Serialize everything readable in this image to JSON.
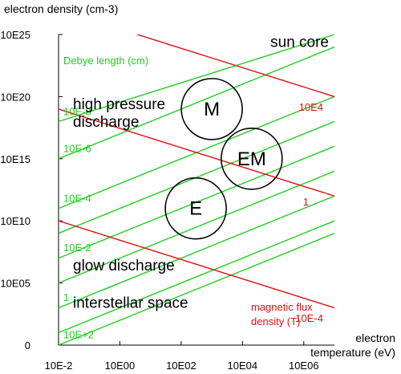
{
  "chart_data": {
    "type": "line",
    "xlabel": "electron\ntemperature (eV)",
    "ylabel": "electron density (cm-3)",
    "x_scale": "log",
    "y_scale": "log",
    "xlim": [
      0.01,
      10000000
    ],
    "ylim": [
      1,
      1e+25
    ],
    "x_ticks": [
      {
        "value": 0.01,
        "label": "10E-2"
      },
      {
        "value": 1,
        "label": "10E00"
      },
      {
        "value": 100,
        "label": "10E02"
      },
      {
        "value": 10000,
        "label": "10E04"
      },
      {
        "value": 1000000,
        "label": "10E06"
      }
    ],
    "y_ticks": [
      {
        "value": 1,
        "label": "0"
      },
      {
        "value": 100000,
        "label": "10E05"
      },
      {
        "value": 10000000000,
        "label": "10E10"
      },
      {
        "value": 1000000000000000.0,
        "label": "10E15"
      },
      {
        "value": 1e+20,
        "label": "10E20"
      },
      {
        "value": 1e+25,
        "label": "10E25"
      }
    ],
    "grid": false,
    "debye_length": {
      "title": "Debye length (cm)",
      "color": "#22cc22",
      "lines": [
        {
          "label": "10E+2",
          "y_at_xmin": 1,
          "y_at_xmax": 1000000000
        },
        {
          "label": "",
          "y_at_xmin": 10,
          "y_at_xmax": 10000000000
        },
        {
          "label": "1",
          "y_at_xmin": 1000,
          "y_at_xmax": 1000000000000.0
        },
        {
          "label": "",
          "y_at_xmin": 100000,
          "y_at_xmax": 100000000000000.0
        },
        {
          "label": "10E-2",
          "y_at_xmin": 10000000,
          "y_at_xmax": 1e+16
        },
        {
          "label": "",
          "y_at_xmin": 1000000000,
          "y_at_xmax": 1e+18
        },
        {
          "label": "10E-4",
          "y_at_xmin": 100000000000.0,
          "y_at_xmax": 1e+20
        },
        {
          "label": "10E-6",
          "y_at_xmin": 1000000000000000.0,
          "y_at_xmax": 1e+24
        },
        {
          "label": "10E-8",
          "y_at_xmin": 1e+18,
          "y_at_xmax": 1e+25
        }
      ]
    },
    "magnetic_flux": {
      "title": "magnetic flux\ndensity (T)",
      "color": "#dd1111",
      "lines": [
        {
          "label": "10E4",
          "y_at_xmin": 1e+27,
          "y_at_xmax": 1e+20
        },
        {
          "label": "1",
          "y_at_xmin": 1e+19,
          "y_at_xmax": 1000000000000.0
        },
        {
          "label": "10E-4",
          "y_at_xmin": 10000000000,
          "y_at_xmax": 1000
        }
      ]
    },
    "regions": [
      {
        "label": "sun core",
        "x": 1000000,
        "y": 1e+24
      },
      {
        "label": "high pressure\ndischarge",
        "x": 10,
        "y": 1e+19
      },
      {
        "label": "glow discharge",
        "x": 10,
        "y": 1000000.0
      },
      {
        "label": "interstellar space",
        "x": 10,
        "y": 1000.0
      }
    ],
    "circles": [
      {
        "label": "M",
        "x": 1000,
        "y": 1e+19
      },
      {
        "label": "EM",
        "x": 20000,
        "y": 1000000000000000.0
      },
      {
        "label": "E",
        "x": 300,
        "y": 100000000000.0
      }
    ]
  }
}
